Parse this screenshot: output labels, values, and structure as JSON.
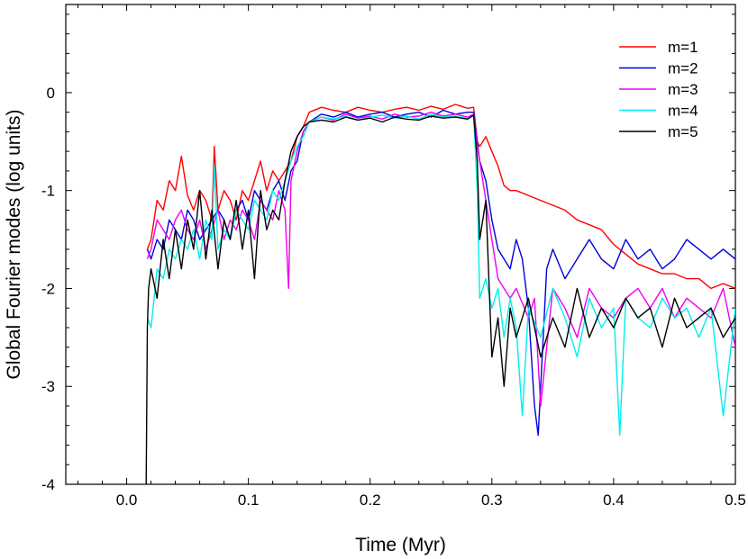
{
  "chart_data": {
    "type": "line",
    "title": "",
    "xlabel": "Time (Myr)",
    "ylabel": "Global Fourier modes (log units)",
    "xlim": [
      -0.05,
      0.5
    ],
    "ylim": [
      -4,
      0.9
    ],
    "x_ticks": [
      {
        "value": 0.0,
        "label": "0.0"
      },
      {
        "value": 0.1,
        "label": "0.1"
      },
      {
        "value": 0.2,
        "label": "0.2"
      },
      {
        "value": 0.3,
        "label": "0.3"
      },
      {
        "value": 0.4,
        "label": "0.4"
      },
      {
        "value": 0.5,
        "label": "0.5"
      }
    ],
    "y_ticks": [
      {
        "value": 0,
        "label": "0"
      },
      {
        "value": -1,
        "label": "-1"
      },
      {
        "value": -2,
        "label": "-2"
      },
      {
        "value": -3,
        "label": "-3"
      },
      {
        "value": -4,
        "label": "-4"
      }
    ],
    "legend_position": "top-right",
    "grid": false,
    "series": [
      {
        "name": "m=1",
        "color": "#ff0000",
        "x": [
          0.017,
          0.02,
          0.025,
          0.03,
          0.035,
          0.04,
          0.045,
          0.05,
          0.055,
          0.06,
          0.065,
          0.07,
          0.072,
          0.075,
          0.08,
          0.085,
          0.09,
          0.095,
          0.1,
          0.105,
          0.11,
          0.115,
          0.12,
          0.125,
          0.13,
          0.135,
          0.14,
          0.145,
          0.15,
          0.16,
          0.17,
          0.18,
          0.19,
          0.2,
          0.21,
          0.22,
          0.23,
          0.24,
          0.25,
          0.26,
          0.27,
          0.28,
          0.285,
          0.288,
          0.29,
          0.295,
          0.3,
          0.305,
          0.31,
          0.315,
          0.32,
          0.33,
          0.34,
          0.35,
          0.36,
          0.37,
          0.38,
          0.39,
          0.4,
          0.41,
          0.42,
          0.43,
          0.44,
          0.45,
          0.46,
          0.47,
          0.48,
          0.49,
          0.5
        ],
        "y": [
          -1.6,
          -1.5,
          -1.1,
          -1.2,
          -0.9,
          -1.0,
          -0.65,
          -1.05,
          -1.2,
          -1.0,
          -1.1,
          -1.3,
          -0.55,
          -1.2,
          -1.0,
          -1.1,
          -1.3,
          -1.0,
          -1.1,
          -0.9,
          -0.7,
          -1.0,
          -0.8,
          -0.9,
          -0.8,
          -0.7,
          -0.45,
          -0.35,
          -0.2,
          -0.15,
          -0.18,
          -0.2,
          -0.15,
          -0.18,
          -0.2,
          -0.17,
          -0.15,
          -0.18,
          -0.14,
          -0.17,
          -0.12,
          -0.16,
          -0.15,
          -0.5,
          -0.55,
          -0.45,
          -0.6,
          -0.75,
          -0.95,
          -1.0,
          -1.0,
          -1.05,
          -1.1,
          -1.15,
          -1.2,
          -1.3,
          -1.35,
          -1.4,
          -1.55,
          -1.65,
          -1.75,
          -1.8,
          -1.85,
          -1.85,
          -1.9,
          -1.9,
          -2.0,
          -1.95,
          -2.0
        ]
      },
      {
        "name": "m=2",
        "color": "#0000dd",
        "x": [
          0.017,
          0.02,
          0.025,
          0.03,
          0.035,
          0.04,
          0.045,
          0.05,
          0.055,
          0.06,
          0.065,
          0.07,
          0.075,
          0.08,
          0.085,
          0.09,
          0.095,
          0.1,
          0.105,
          0.11,
          0.115,
          0.12,
          0.125,
          0.13,
          0.135,
          0.14,
          0.145,
          0.15,
          0.16,
          0.17,
          0.18,
          0.19,
          0.2,
          0.21,
          0.22,
          0.23,
          0.24,
          0.25,
          0.26,
          0.27,
          0.28,
          0.285,
          0.288,
          0.29,
          0.295,
          0.3,
          0.305,
          0.31,
          0.315,
          0.32,
          0.325,
          0.33,
          0.335,
          0.338,
          0.345,
          0.35,
          0.36,
          0.37,
          0.38,
          0.39,
          0.4,
          0.41,
          0.42,
          0.43,
          0.44,
          0.45,
          0.46,
          0.47,
          0.48,
          0.49,
          0.5
        ],
        "y": [
          -1.6,
          -1.7,
          -1.5,
          -1.6,
          -1.3,
          -1.4,
          -1.5,
          -1.2,
          -1.3,
          -1.5,
          -1.4,
          -1.3,
          -1.2,
          -1.3,
          -1.5,
          -1.2,
          -1.1,
          -1.3,
          -1.0,
          -1.1,
          -1.2,
          -1.0,
          -0.9,
          -1.1,
          -0.8,
          -0.7,
          -0.4,
          -0.3,
          -0.22,
          -0.25,
          -0.2,
          -0.25,
          -0.22,
          -0.2,
          -0.25,
          -0.22,
          -0.2,
          -0.25,
          -0.18,
          -0.22,
          -0.2,
          -0.2,
          -0.5,
          -0.7,
          -0.9,
          -1.3,
          -1.6,
          -1.7,
          -1.8,
          -1.5,
          -1.7,
          -2.2,
          -3.2,
          -3.5,
          -1.8,
          -1.6,
          -1.9,
          -1.7,
          -1.5,
          -1.7,
          -1.8,
          -1.5,
          -1.7,
          -1.6,
          -1.8,
          -1.7,
          -1.5,
          -1.6,
          -1.7,
          -1.6,
          -1.7
        ]
      },
      {
        "name": "m=3",
        "color": "#ee00ee",
        "x": [
          0.017,
          0.02,
          0.025,
          0.03,
          0.035,
          0.04,
          0.045,
          0.05,
          0.055,
          0.06,
          0.065,
          0.07,
          0.075,
          0.08,
          0.085,
          0.09,
          0.095,
          0.1,
          0.105,
          0.11,
          0.115,
          0.12,
          0.125,
          0.13,
          0.133,
          0.135,
          0.14,
          0.145,
          0.15,
          0.16,
          0.17,
          0.18,
          0.19,
          0.2,
          0.21,
          0.22,
          0.23,
          0.24,
          0.25,
          0.26,
          0.27,
          0.28,
          0.285,
          0.288,
          0.29,
          0.295,
          0.3,
          0.305,
          0.31,
          0.315,
          0.32,
          0.33,
          0.335,
          0.34,
          0.35,
          0.36,
          0.37,
          0.38,
          0.39,
          0.4,
          0.41,
          0.42,
          0.43,
          0.44,
          0.45,
          0.46,
          0.47,
          0.48,
          0.49,
          0.5
        ],
        "y": [
          -1.7,
          -1.6,
          -1.3,
          -1.4,
          -1.5,
          -1.3,
          -1.2,
          -1.4,
          -1.5,
          -1.3,
          -1.6,
          -1.4,
          -1.2,
          -1.5,
          -1.3,
          -1.4,
          -1.2,
          -1.3,
          -1.5,
          -1.1,
          -1.2,
          -1.3,
          -1.0,
          -1.2,
          -2.0,
          -0.9,
          -0.6,
          -0.4,
          -0.3,
          -0.25,
          -0.28,
          -0.22,
          -0.26,
          -0.24,
          -0.27,
          -0.22,
          -0.25,
          -0.24,
          -0.2,
          -0.24,
          -0.22,
          -0.25,
          -0.22,
          -0.55,
          -0.7,
          -1.1,
          -1.5,
          -1.9,
          -2.0,
          -2.1,
          -2.0,
          -2.3,
          -2.1,
          -3.2,
          -2.0,
          -2.2,
          -2.5,
          -2.0,
          -2.2,
          -2.3,
          -2.1,
          -2.0,
          -2.2,
          -2.0,
          -2.3,
          -2.1,
          -2.2,
          -2.3,
          -2.0,
          -2.6
        ]
      },
      {
        "name": "m=4",
        "color": "#00eeee",
        "x": [
          0.017,
          0.02,
          0.025,
          0.03,
          0.035,
          0.04,
          0.045,
          0.05,
          0.055,
          0.06,
          0.065,
          0.07,
          0.072,
          0.075,
          0.08,
          0.085,
          0.09,
          0.095,
          0.1,
          0.105,
          0.11,
          0.115,
          0.12,
          0.125,
          0.13,
          0.135,
          0.14,
          0.145,
          0.15,
          0.16,
          0.17,
          0.18,
          0.19,
          0.2,
          0.21,
          0.22,
          0.23,
          0.24,
          0.25,
          0.26,
          0.27,
          0.28,
          0.285,
          0.288,
          0.29,
          0.295,
          0.3,
          0.305,
          0.31,
          0.315,
          0.32,
          0.325,
          0.33,
          0.34,
          0.35,
          0.36,
          0.37,
          0.38,
          0.39,
          0.4,
          0.405,
          0.41,
          0.42,
          0.43,
          0.44,
          0.45,
          0.46,
          0.47,
          0.48,
          0.49,
          0.5
        ],
        "y": [
          -2.3,
          -2.4,
          -1.8,
          -1.9,
          -1.6,
          -1.7,
          -1.5,
          -1.6,
          -1.4,
          -1.7,
          -1.3,
          -1.5,
          -0.75,
          -1.6,
          -1.4,
          -1.5,
          -1.2,
          -1.3,
          -1.4,
          -1.1,
          -1.2,
          -1.3,
          -1.0,
          -1.1,
          -0.9,
          -0.7,
          -0.55,
          -0.45,
          -0.3,
          -0.25,
          -0.27,
          -0.24,
          -0.28,
          -0.25,
          -0.23,
          -0.26,
          -0.24,
          -0.27,
          -0.22,
          -0.25,
          -0.24,
          -0.26,
          -0.24,
          -1.0,
          -2.1,
          -1.9,
          -2.2,
          -2.0,
          -2.5,
          -2.1,
          -2.4,
          -3.3,
          -2.2,
          -2.5,
          -2.0,
          -2.3,
          -2.7,
          -2.1,
          -2.4,
          -2.2,
          -3.5,
          -2.1,
          -2.3,
          -2.4,
          -2.1,
          -2.3,
          -2.2,
          -2.5,
          -2.2,
          -3.3,
          -2.2
        ]
      },
      {
        "name": "m=5",
        "color": "#000000",
        "x": [
          0.016,
          0.017,
          0.018,
          0.02,
          0.025,
          0.03,
          0.035,
          0.04,
          0.045,
          0.05,
          0.055,
          0.06,
          0.065,
          0.07,
          0.075,
          0.08,
          0.085,
          0.09,
          0.095,
          0.1,
          0.105,
          0.11,
          0.115,
          0.12,
          0.125,
          0.13,
          0.135,
          0.14,
          0.145,
          0.15,
          0.16,
          0.17,
          0.18,
          0.19,
          0.2,
          0.21,
          0.22,
          0.23,
          0.24,
          0.25,
          0.26,
          0.27,
          0.28,
          0.285,
          0.288,
          0.29,
          0.295,
          0.3,
          0.305,
          0.31,
          0.315,
          0.32,
          0.33,
          0.34,
          0.35,
          0.36,
          0.37,
          0.38,
          0.39,
          0.4,
          0.41,
          0.42,
          0.43,
          0.44,
          0.45,
          0.46,
          0.47,
          0.48,
          0.49,
          0.5
        ],
        "y": [
          -4.0,
          -2.4,
          -2.0,
          -1.8,
          -2.1,
          -1.5,
          -1.9,
          -1.4,
          -1.8,
          -1.3,
          -1.6,
          -1.0,
          -1.7,
          -1.2,
          -1.8,
          -1.3,
          -1.5,
          -1.1,
          -1.6,
          -1.2,
          -1.9,
          -1.0,
          -1.4,
          -1.2,
          -1.3,
          -0.9,
          -0.6,
          -0.45,
          -0.35,
          -0.3,
          -0.28,
          -0.3,
          -0.25,
          -0.28,
          -0.26,
          -0.3,
          -0.25,
          -0.27,
          -0.28,
          -0.24,
          -0.26,
          -0.25,
          -0.27,
          -0.23,
          -0.7,
          -1.5,
          -1.1,
          -2.7,
          -2.3,
          -3.0,
          -2.2,
          -2.5,
          -2.1,
          -2.7,
          -2.3,
          -2.6,
          -2.0,
          -2.5,
          -2.2,
          -2.4,
          -2.1,
          -2.3,
          -2.2,
          -2.6,
          -2.1,
          -2.4,
          -2.3,
          -2.2,
          -2.5,
          -2.3
        ]
      }
    ]
  }
}
